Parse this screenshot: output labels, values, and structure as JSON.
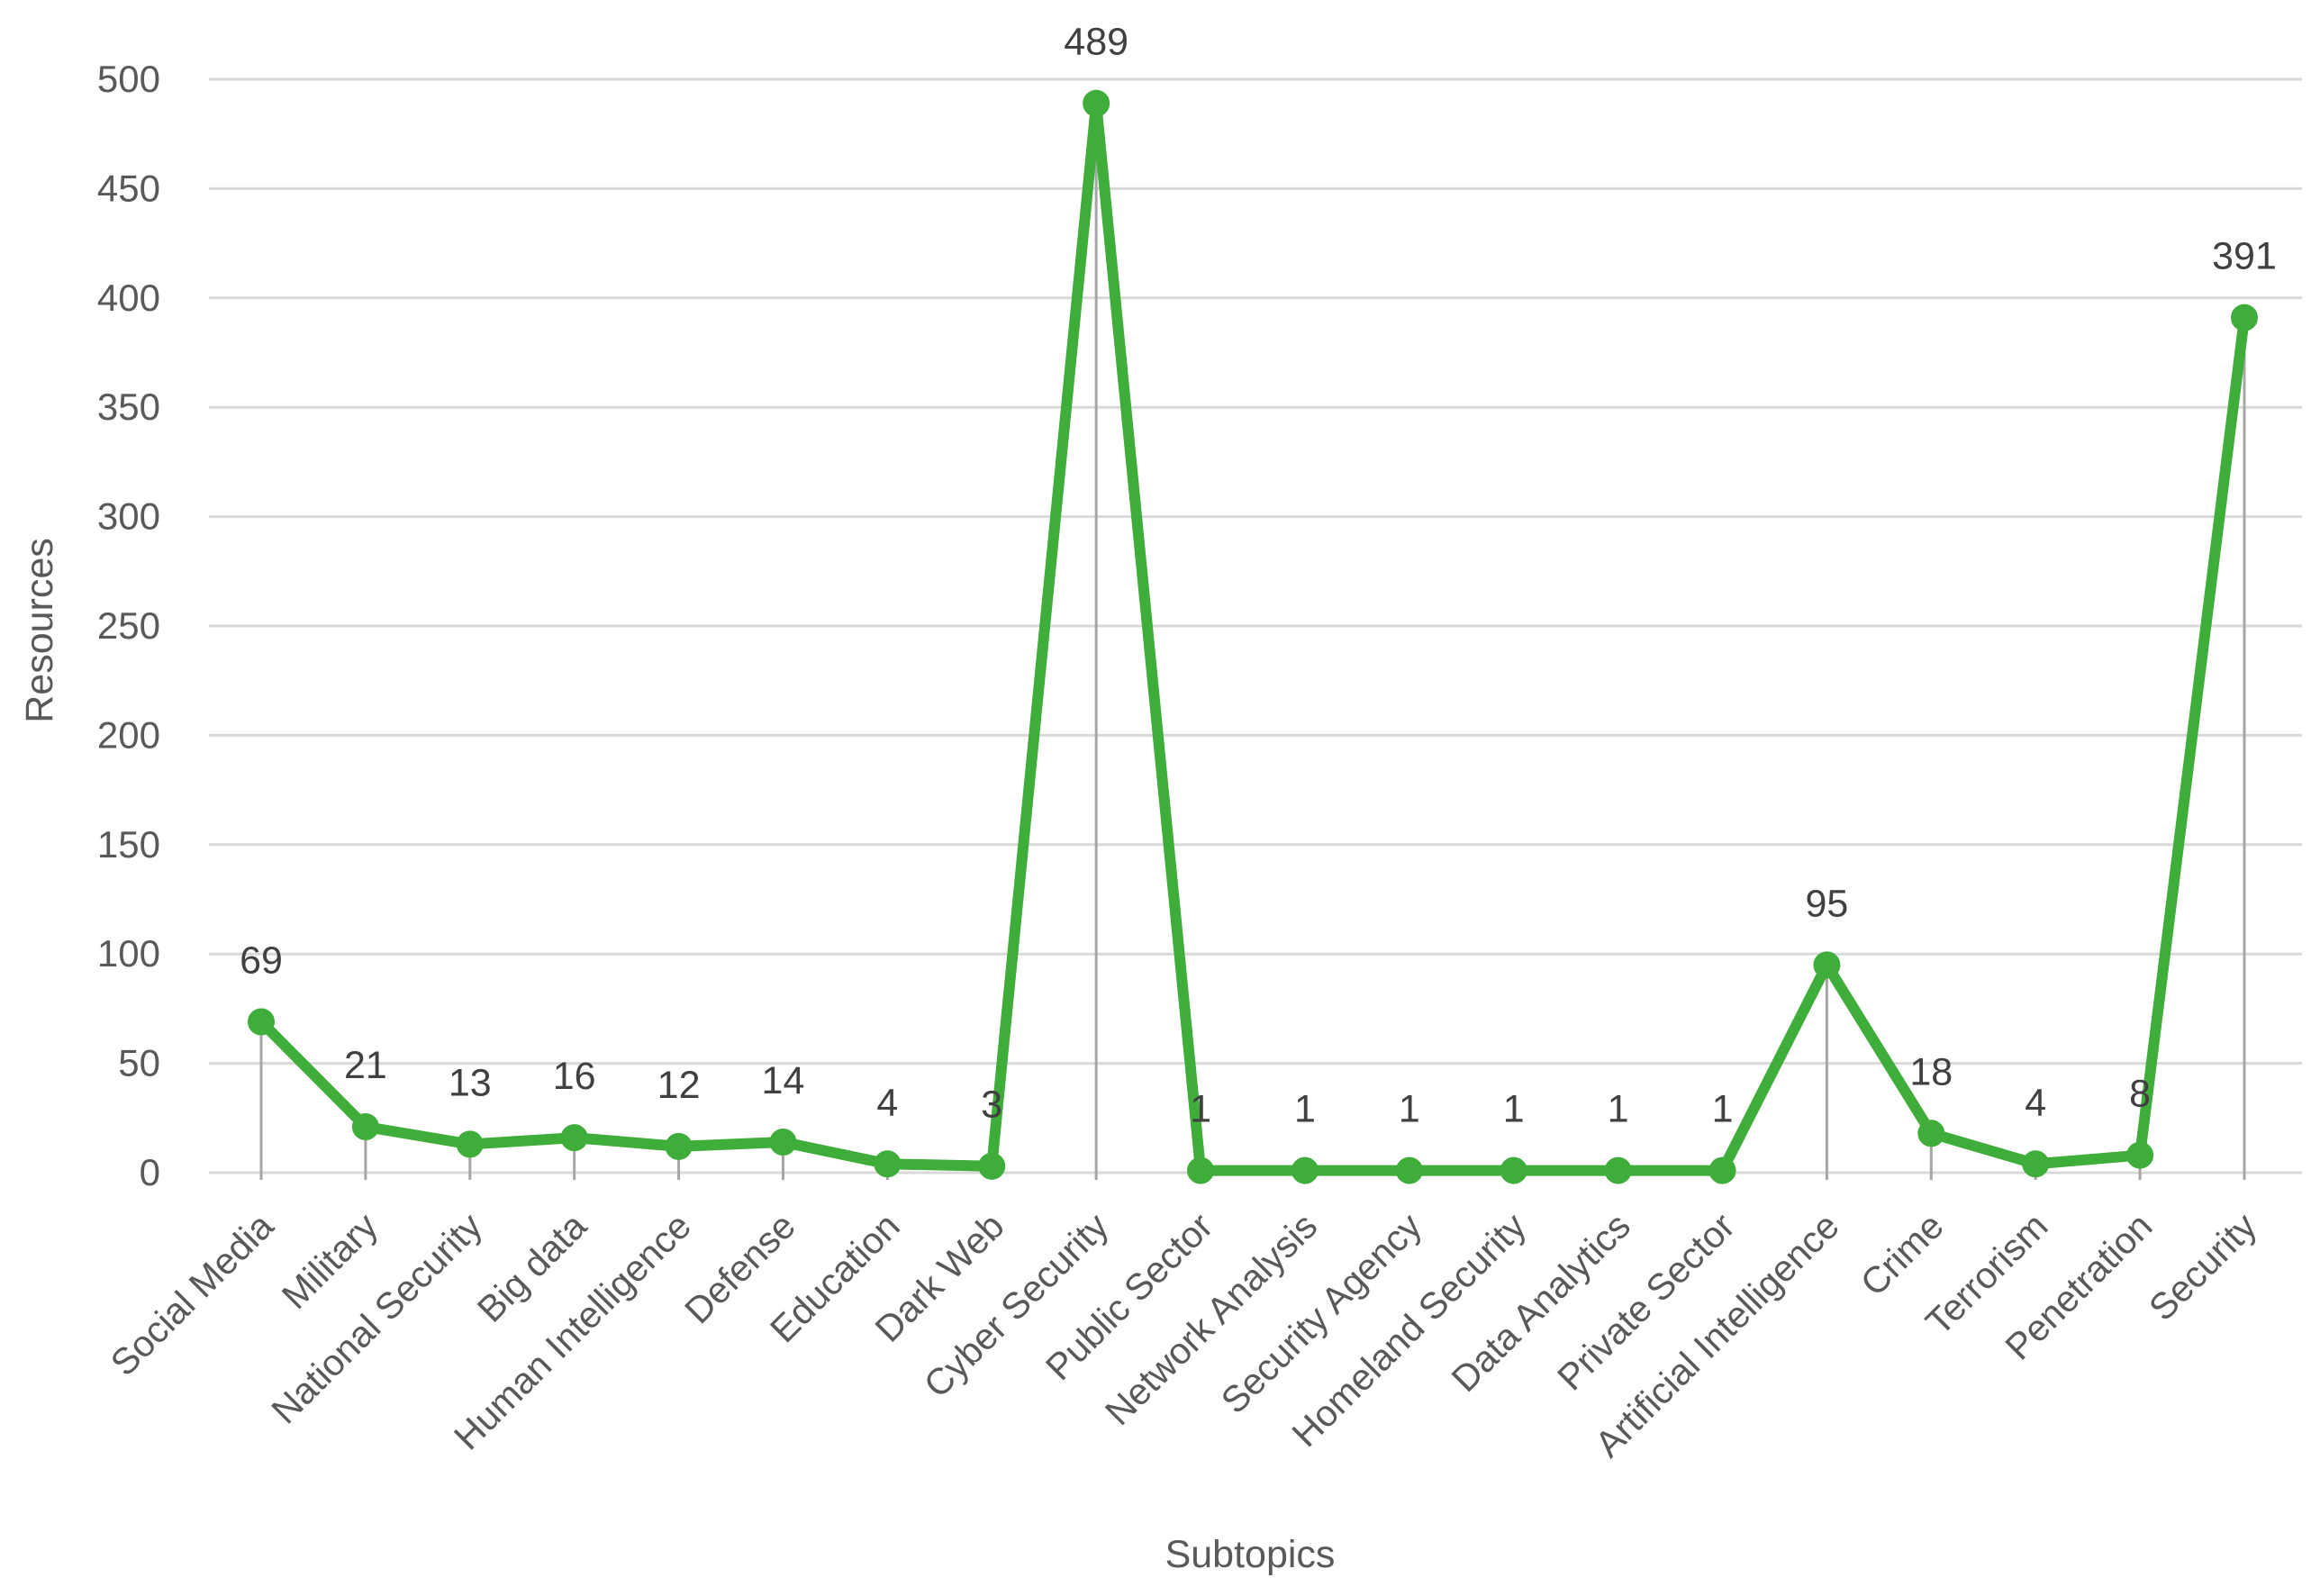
{
  "chart_data": {
    "type": "line",
    "xlabel": "Subtopics",
    "ylabel": "Resources",
    "ylim": [
      0,
      500
    ],
    "yticks": [
      0,
      50,
      100,
      150,
      200,
      250,
      300,
      350,
      400,
      450,
      500
    ],
    "grid": true,
    "legend": "none",
    "categories": [
      "Social Media",
      "Military",
      "National Security",
      "Big data",
      "Human Intelligence",
      "Defense",
      "Education",
      "Dark Web",
      "Cyber Security",
      "Public Sector",
      "Network Analysis",
      "Security Agency",
      "Homeland Security",
      "Data Analytics",
      "Private Sector",
      "Artificial Intelligence",
      "Crime",
      "Terrorism",
      "Penetration",
      "Security"
    ],
    "series": [
      {
        "values": [
          69,
          21,
          13,
          16,
          12,
          14,
          4,
          3,
          489,
          1,
          1,
          1,
          1,
          1,
          1,
          95,
          18,
          4,
          8,
          391
        ]
      }
    ],
    "colors": {
      "line": "#3fad3a",
      "gridline": "#d9d9d9",
      "dropline": "#a6a6a6",
      "text": "#595959"
    }
  }
}
